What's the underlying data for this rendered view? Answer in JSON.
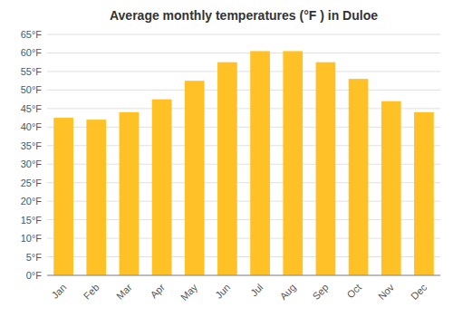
{
  "chart_data": {
    "type": "bar",
    "title": "Average monthly temperatures (°F ) in Duloe",
    "categories": [
      "Jan",
      "Feb",
      "Mar",
      "Apr",
      "May",
      "Jun",
      "Jul",
      "Aug",
      "Sep",
      "Oct",
      "Nov",
      "Dec"
    ],
    "values": [
      42.5,
      42.0,
      44.0,
      47.5,
      52.5,
      57.5,
      60.5,
      60.5,
      57.5,
      53.0,
      47.0,
      44.0
    ],
    "color": "#FFC125",
    "ylim": [
      0,
      65
    ],
    "yticks": [
      {
        "value": 0,
        "label": "0°F"
      },
      {
        "value": 5,
        "label": "5°F"
      },
      {
        "value": 10,
        "label": "10°F"
      },
      {
        "value": 15,
        "label": "15°F"
      },
      {
        "value": 20,
        "label": "20°F"
      },
      {
        "value": 25,
        "label": "25°F"
      },
      {
        "value": 30,
        "label": "30°F"
      },
      {
        "value": 35,
        "label": "35°F"
      },
      {
        "value": 40,
        "label": "40°F"
      },
      {
        "value": 45,
        "label": "45°F"
      },
      {
        "value": 50,
        "label": "50°F"
      },
      {
        "value": 55,
        "label": "55°F"
      },
      {
        "value": 60,
        "label": "60°F"
      },
      {
        "value": 65,
        "label": "65°F"
      }
    ],
    "grid": true
  }
}
